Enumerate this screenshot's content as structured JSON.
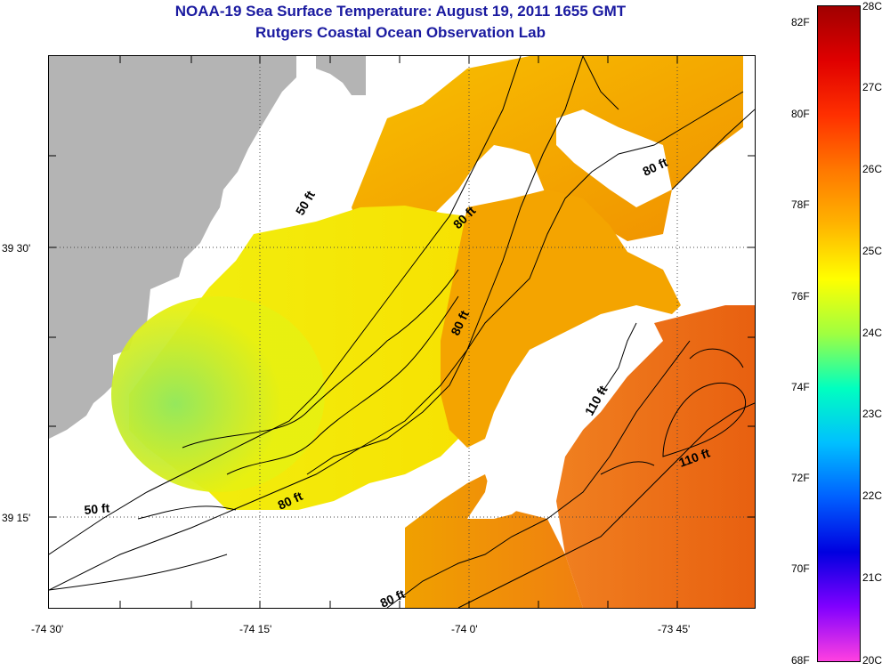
{
  "title": {
    "line1": "NOAA-19 Sea Surface Temperature:  August 19, 2011 1655 GMT",
    "line2": "Rutgers Coastal Ocean Observation Lab"
  },
  "axes": {
    "lon_labels": [
      "-74 30'",
      "-74 15'",
      "-74 0'",
      "-73 45'"
    ],
    "lat_labels": [
      "39 30'",
      "39 15'"
    ]
  },
  "contours": {
    "labels": [
      "50 ft",
      "80 ft",
      "80 ft",
      "80 ft",
      "110 ft",
      "110 ft",
      "80 ft",
      "50 ft",
      "80 ft"
    ]
  },
  "colorbar": {
    "fahrenheit": [
      "82F",
      "80F",
      "78F",
      "76F",
      "74F",
      "72F",
      "70F",
      "68F"
    ],
    "celsius": [
      "28C",
      "27C",
      "26C",
      "25C",
      "24C",
      "23C",
      "22C",
      "21C",
      "20C"
    ],
    "colors": [
      "#a00000",
      "#e00000",
      "#ff3000",
      "#ff7800",
      "#ffb400",
      "#ffff00",
      "#a0ff40",
      "#00ffc0",
      "#00c0ff",
      "#0060ff",
      "#0000e0",
      "#8000ff",
      "#ff40e0"
    ]
  },
  "land_color": "#b4b4b4"
}
